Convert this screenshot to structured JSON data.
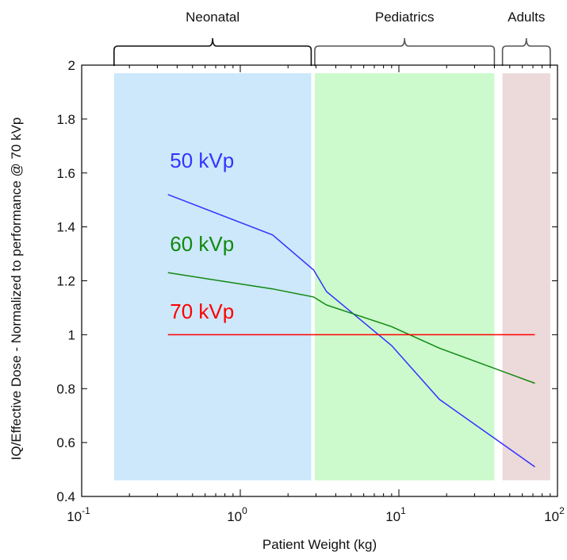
{
  "chart_data": {
    "type": "line",
    "title": "",
    "xlabel": "Patient Weight (kg)",
    "ylabel": "IQ/Effective Dose - Normalized to performance @ 70 kVp",
    "x_scale": "log",
    "xlim": [
      0.1,
      100
    ],
    "ylim": [
      0.4,
      2
    ],
    "grid": false,
    "x_ticks": [
      {
        "value": 0.1,
        "base": "10",
        "exp": "-1"
      },
      {
        "value": 1,
        "base": "10",
        "exp": "0"
      },
      {
        "value": 10,
        "base": "10",
        "exp": "1"
      },
      {
        "value": 100,
        "base": "10",
        "exp": "2"
      }
    ],
    "y_ticks": [
      0.4,
      0.6,
      0.8,
      1,
      1.2,
      1.4,
      1.6,
      1.8,
      2
    ],
    "y_tick_labels": [
      "0.4",
      "0.6",
      "0.8",
      "1",
      "1.2",
      "1.4",
      "1.6",
      "1.8",
      "2"
    ],
    "regions": [
      {
        "label": "Neonatal",
        "x_start": 0.16,
        "x_end": 2.8,
        "color": "#cce8fa",
        "bracket_color": "#111111"
      },
      {
        "label": "Pediatrics",
        "x_start": 2.95,
        "x_end": 40,
        "color": "#ccfacc",
        "bracket_color": "#555555"
      },
      {
        "label": "Adults",
        "x_start": 45,
        "x_end": 90,
        "color": "#ecd9d9",
        "bracket_color": "#555555"
      }
    ],
    "region_y_range": [
      0.46,
      1.97
    ],
    "series": [
      {
        "name": "50 kVp",
        "color": "#3333ff",
        "label_pos": {
          "x": 0.36,
          "y": 1.62
        },
        "x": [
          0.35,
          1.6,
          2.9,
          3.5,
          9,
          18,
          72
        ],
        "y": [
          1.52,
          1.37,
          1.24,
          1.16,
          0.96,
          0.76,
          0.51
        ]
      },
      {
        "name": "60 kVp",
        "color": "#118811",
        "label_pos": {
          "x": 0.36,
          "y": 1.31
        },
        "x": [
          0.35,
          1.6,
          2.9,
          3.5,
          9,
          18,
          72
        ],
        "y": [
          1.23,
          1.17,
          1.14,
          1.11,
          1.03,
          0.95,
          0.82
        ]
      },
      {
        "name": "70 kVp",
        "color": "#ff0000",
        "label_pos": {
          "x": 0.36,
          "y": 1.06
        },
        "x": [
          0.35,
          72
        ],
        "y": [
          1,
          1
        ]
      }
    ]
  }
}
